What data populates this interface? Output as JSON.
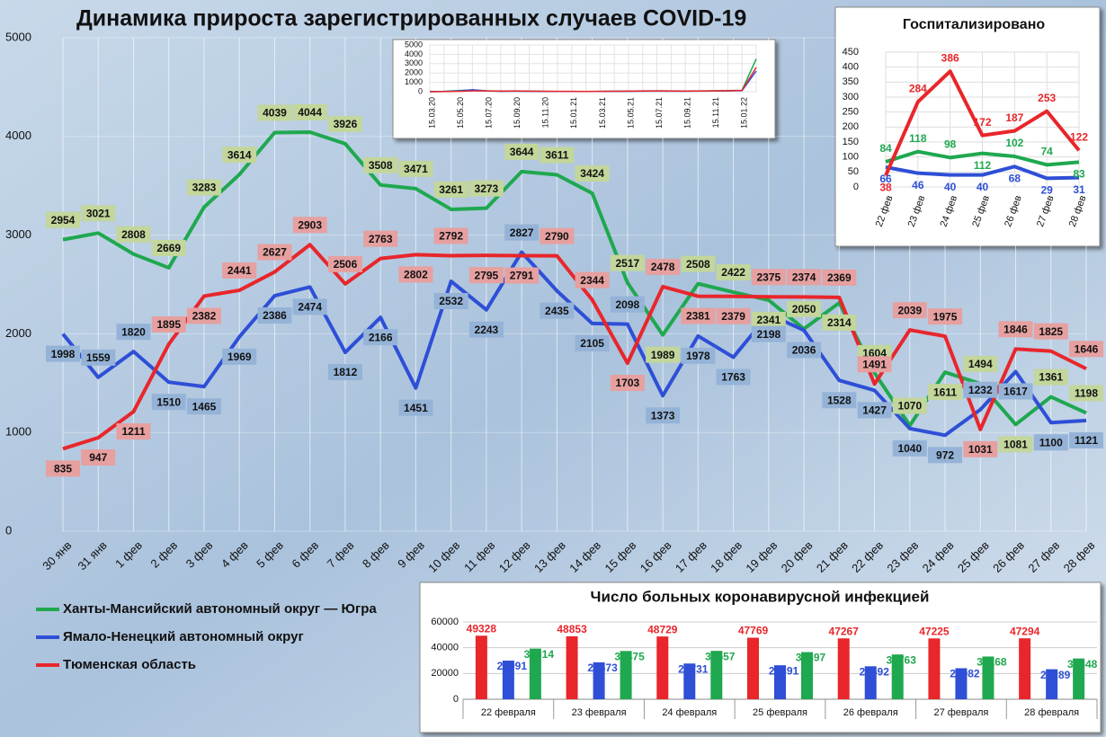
{
  "chart_data": [
    {
      "type": "line",
      "title": "Динамика прироста зарегистрированных случаев COVID-19",
      "categories": [
        "30 янв",
        "31 янв",
        "1 фев",
        "2 фев",
        "3 фев",
        "4 фев",
        "5 фев",
        "6 фев",
        "7 фев",
        "8 фев",
        "9 фев",
        "10 фев",
        "11 фев",
        "12 фев",
        "13 фев",
        "14 фев",
        "15 фев",
        "16 фев",
        "17 фев",
        "18 фев",
        "19 фев",
        "20 фев",
        "21 фев",
        "22 фев",
        "23 фев",
        "24 фев",
        "25 фев",
        "26 фев",
        "27 фев",
        "28 фев"
      ],
      "series": [
        {
          "name": "Ханты-Мансийский автономный округ — Югра",
          "color": "#1fa84f",
          "values": [
            2954,
            3021,
            2808,
            2669,
            3283,
            3614,
            4039,
            4044,
            3926,
            3508,
            3471,
            3261,
            3273,
            3644,
            3611,
            3424,
            2517,
            1989,
            2508,
            2422,
            2341,
            2050,
            2314,
            1604,
            1070,
            1611,
            1494,
            1081,
            1361,
            1198
          ]
        },
        {
          "name": "Ямало-Ненецкий автономный округ",
          "color": "#2e4fd6",
          "values": [
            1998,
            1559,
            1820,
            1510,
            1465,
            1969,
            2386,
            2474,
            1812,
            2166,
            1451,
            2532,
            2243,
            2827,
            2435,
            2105,
            2098,
            1373,
            1978,
            1763,
            2198,
            2036,
            1528,
            1427,
            1040,
            972,
            1232,
            1617,
            1100,
            1121
          ]
        },
        {
          "name": "Тюменская область",
          "color": "#e8262b",
          "values": [
            835,
            947,
            1211,
            1895,
            2382,
            2441,
            2627,
            2903,
            2506,
            2763,
            2802,
            2792,
            2795,
            2791,
            2790,
            2344,
            1703,
            2478,
            2381,
            2379,
            2375,
            2374,
            2369,
            1491,
            2039,
            1975,
            1031,
            1846,
            1825,
            1646
          ]
        }
      ],
      "ylim": [
        0,
        5000
      ],
      "yticks": [
        0,
        1000,
        2000,
        3000,
        4000,
        5000
      ],
      "grid": true,
      "legend": "bottom-left"
    },
    {
      "type": "line",
      "categories": [
        "15.03.20",
        null,
        "15.05.20",
        null,
        "15.07.20",
        null,
        "15.09.20",
        null,
        "15.11.20",
        null,
        "15.01.21",
        null,
        "15.03.21",
        null,
        "15.05.21",
        null,
        "15.07.21",
        null,
        "15.09.21",
        null,
        "15.11.21",
        null,
        "15.01.22",
        null
      ],
      "series": [
        {
          "color": "#1fa84f",
          "values": [
            10,
            40,
            120,
            180,
            100,
            60,
            80,
            60,
            40,
            30,
            30,
            20,
            40,
            50,
            60,
            80,
            90,
            80,
            70,
            80,
            100,
            120,
            150,
            3500
          ]
        },
        {
          "color": "#2e4fd6",
          "values": [
            5,
            20,
            80,
            200,
            90,
            40,
            50,
            40,
            30,
            30,
            20,
            20,
            30,
            40,
            40,
            50,
            60,
            50,
            50,
            60,
            70,
            90,
            110,
            2200
          ]
        },
        {
          "color": "#e8262b",
          "values": [
            5,
            10,
            40,
            90,
            80,
            60,
            70,
            60,
            50,
            40,
            40,
            30,
            40,
            50,
            60,
            70,
            80,
            70,
            60,
            70,
            90,
            100,
            130,
            2600
          ]
        }
      ],
      "ylim": [
        0,
        5000
      ],
      "yticks": [
        0,
        1000,
        2000,
        3000,
        4000,
        5000
      ],
      "grid": true
    },
    {
      "type": "line",
      "title": "Госпитализировано",
      "categories": [
        "22 фев",
        "23 фев",
        "24 фев",
        "25 фев",
        "26 фев",
        "27 фев",
        "28 фев"
      ],
      "series": [
        {
          "color": "#1fa84f",
          "values": [
            84,
            118,
            98,
            112,
            102,
            74,
            83
          ]
        },
        {
          "color": "#2e4fd6",
          "values": [
            66,
            46,
            40,
            40,
            68,
            29,
            31
          ]
        },
        {
          "color": "#e8262b",
          "values": [
            38,
            284,
            386,
            172,
            187,
            253,
            122
          ]
        }
      ],
      "ylim": [
        0,
        450
      ],
      "yticks": [
        0,
        50,
        100,
        150,
        200,
        250,
        300,
        350,
        400,
        450
      ],
      "grid": true
    },
    {
      "type": "bar",
      "title": "Число больных  коронавирусной  инфекцией",
      "categories": [
        "22 февраля",
        "23 февраля",
        "24 февраля",
        "25 февраля",
        "26 февраля",
        "27 февраля",
        "28 февраля"
      ],
      "series": [
        {
          "color": "#e8262b",
          "values": [
            49328,
            48853,
            48729,
            47769,
            47267,
            47225,
            47294
          ]
        },
        {
          "color": "#2e4fd6",
          "values": [
            29991,
            28673,
            27731,
            26391,
            25592,
            24082,
            23289
          ]
        },
        {
          "color": "#1fa84f",
          "values": [
            39314,
            37475,
            37557,
            36597,
            34763,
            33168,
            31648
          ]
        }
      ],
      "ylim": [
        0,
        60000
      ],
      "yticks": [
        0,
        20000,
        40000,
        60000
      ],
      "grid": true
    }
  ]
}
